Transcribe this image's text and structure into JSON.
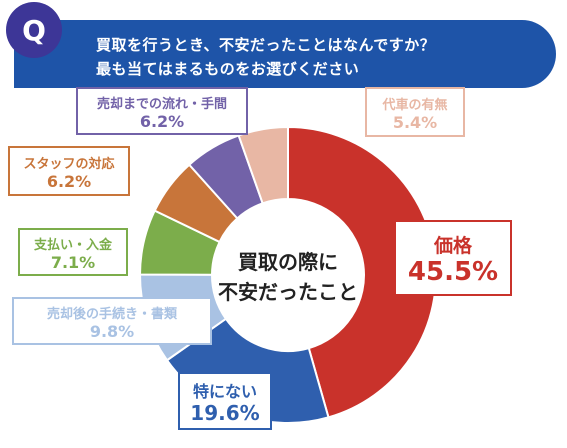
{
  "question": {
    "badge": "Q",
    "line1": "買取を行うとき、不安だったことはなんですか？",
    "line2": "最も当てはまるものをお選びください"
  },
  "colors": {
    "banner": "#1e54a8",
    "badge": "#3d3697"
  },
  "chart_data": {
    "type": "pie",
    "center_label": [
      "買取の際に",
      "不安だったこと"
    ],
    "slices": [
      {
        "label": "価格",
        "value": 45.5,
        "display": "45.5%",
        "color": "#c9322b"
      },
      {
        "label": "特にない",
        "value": 19.6,
        "display": "19.6%",
        "color": "#2f5fae"
      },
      {
        "label": "売却後の手続き・書類",
        "value": 9.8,
        "display": "9.8%",
        "color": "#a9c2e3"
      },
      {
        "label": "支払い・入金",
        "value": 7.1,
        "display": "7.1%",
        "color": "#7cad4b"
      },
      {
        "label": "スタッフの対応",
        "value": 6.2,
        "display": "6.2%",
        "color": "#c8753a"
      },
      {
        "label": "売却までの流れ・手間",
        "value": 6.2,
        "display": "6.2%",
        "color": "#7262a8"
      },
      {
        "label": "代車の有無",
        "value": 5.4,
        "display": "5.4%",
        "color": "#e8b7a4"
      }
    ]
  }
}
